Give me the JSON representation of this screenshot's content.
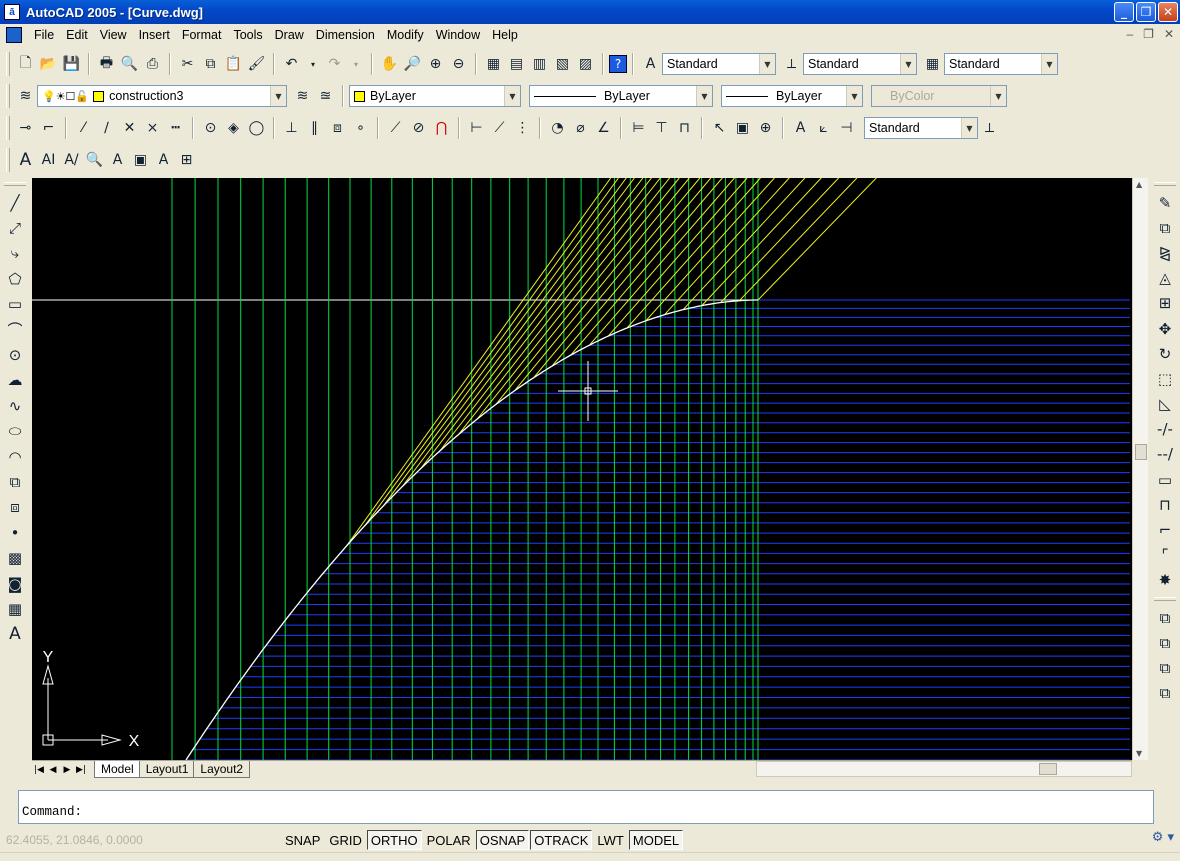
{
  "window": {
    "app_icon_glyph": "ā",
    "title": "AutoCAD 2005 - [Curve.dwg]"
  },
  "menu": [
    "File",
    "Edit",
    "View",
    "Insert",
    "Format",
    "Tools",
    "Draw",
    "Dimension",
    "Modify",
    "Window",
    "Help"
  ],
  "styles_toolbar": {
    "text_style": "Standard",
    "dim_style": "Standard",
    "table_style": "Standard"
  },
  "layers_toolbar": {
    "current_layer": "construction3",
    "layer_color": "#ffff00"
  },
  "properties_toolbar": {
    "color": "ByLayer",
    "linetype": "ByLayer",
    "lineweight": "ByLayer",
    "plot_style": "ByColor"
  },
  "dim_toolbar": {
    "dim_style": "Standard"
  },
  "drawing": {
    "ucs_x_label": "X",
    "ucs_y_label": "Y",
    "background": "#000000",
    "grid_color": "#00e040",
    "hline_color": "#1e3cff",
    "tangent_color": "#f0f020",
    "curve_color": "#ffffff"
  },
  "layout_tabs": [
    "Model",
    "Layout1",
    "Layout2"
  ],
  "command": {
    "prompt": "Command:"
  },
  "status": {
    "coordinates": "62.4055, 21.0846, 0.0000",
    "toggles": [
      {
        "label": "SNAP",
        "on": false
      },
      {
        "label": "GRID",
        "on": false
      },
      {
        "label": "ORTHO",
        "on": true
      },
      {
        "label": "POLAR",
        "on": false
      },
      {
        "label": "OSNAP",
        "on": true
      },
      {
        "label": "OTRACK",
        "on": true
      },
      {
        "label": "LWT",
        "on": false
      },
      {
        "label": "MODEL",
        "on": true
      }
    ]
  }
}
